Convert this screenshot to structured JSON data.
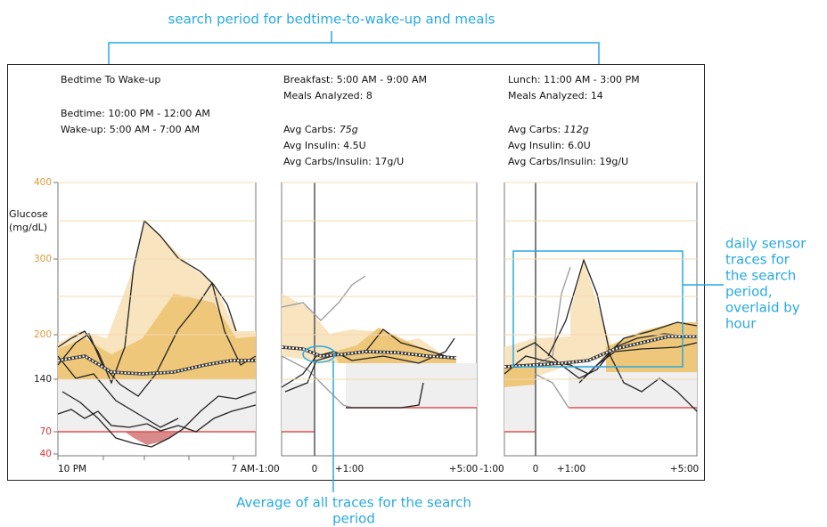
{
  "annotations": {
    "top": "search period for bedtime-to-wake-up and meals",
    "right": [
      "daily sensor",
      "traces for",
      "the search",
      "period,",
      "overlaid by",
      "hour"
    ],
    "bottom": [
      "Average of all traces for the search",
      "period"
    ]
  },
  "y_axis": {
    "label": [
      "Glucose",
      "(mg/dL)"
    ],
    "ticks": [
      "400",
      "300",
      "200",
      "140",
      "70",
      "40"
    ]
  },
  "panels": [
    {
      "header": [
        {
          "label": "Bedtime To  Wake-up"
        },
        {
          "label": "Bedtime: 10:00 PM - 12:00 AM"
        },
        {
          "label": "Wake-up: 5:00 AM - 7:00 AM"
        }
      ],
      "x_labels": [
        "10 PM",
        "7 AM"
      ]
    },
    {
      "header": [
        {
          "label": "Breakfast: 5:00 AM - 9:00 AM"
        },
        {
          "label": "Meals Analyzed: 8"
        },
        {
          "label": "Avg Carbs:",
          "value": "75g"
        },
        {
          "label": "Avg Insulin: 4.5U"
        },
        {
          "label": "Avg Carbs/Insulin: 17g/U"
        }
      ],
      "x_labels": [
        "-1:00",
        "0",
        "+1:00",
        "+5:00"
      ]
    },
    {
      "header": [
        {
          "label": "Lunch: 11:00 AM - 3:00 PM"
        },
        {
          "label": "Meals Analyzed: 14"
        },
        {
          "label": "Avg Carbs:",
          "value": "112g"
        },
        {
          "label": "Avg Insulin: 6.0U"
        },
        {
          "label": "Avg Carbs/Insulin: 19g/U"
        }
      ],
      "x_labels": [
        "-1:00",
        "0",
        "+1:00",
        "+5:00"
      ]
    }
  ]
}
